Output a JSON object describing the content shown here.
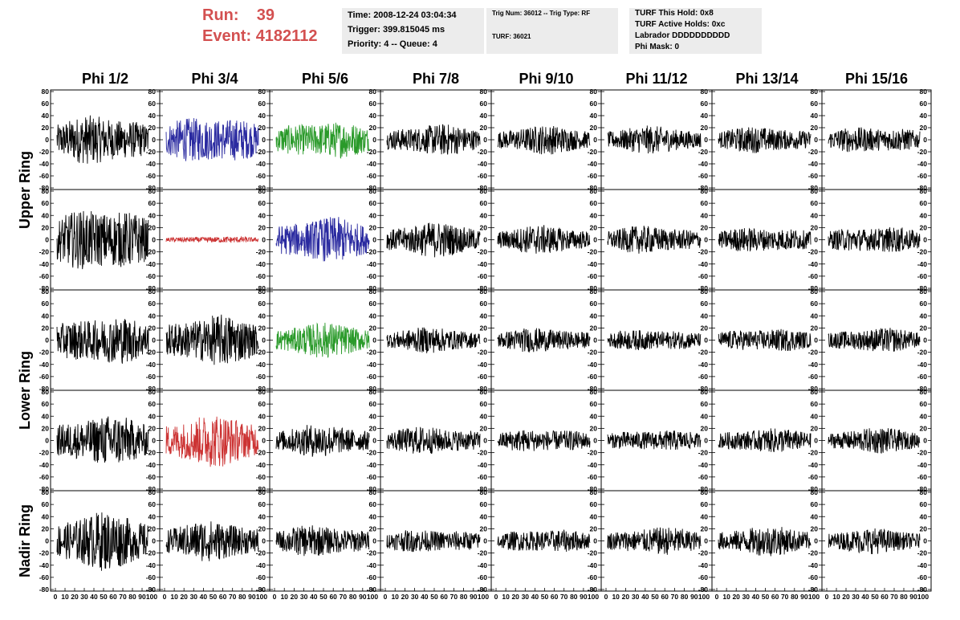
{
  "header": {
    "run_label": "Run:",
    "run_value": "39",
    "event_label": "Event:",
    "event_value": "4182112",
    "time_line": "Time: 2008-12-24 03:04:34",
    "trigger_line": "Trigger: 399.815045 ms",
    "priority_line": "Priority: 4 -- Queue: 4",
    "trig_num_line": "Trig Num: 36012 -- Trig Type: RF",
    "turf_line": "TURF: 36021",
    "turf_hold_line": "TURF This Hold: 0x8",
    "turf_active_line": "TURF Active Holds: 0xc",
    "labrador_line": "Labrador DDDDDDDDDD",
    "phi_mask_line": "Phi Mask: 0"
  },
  "colors": {
    "header_text": "#d35050",
    "info_box": "#ececec",
    "black_trace": "#000000",
    "blue_trace": "#2a2aa0",
    "green_trace": "#2a9a2a",
    "red_trace": "#cc3333"
  },
  "chart_data": {
    "type": "line",
    "column_labels": [
      "Phi 1/2",
      "Phi 3/4",
      "Phi 5/6",
      "Phi 7/8",
      "Phi 9/10",
      "Phi 11/12",
      "Phi 13/14",
      "Phi 15/16"
    ],
    "ring_labels": [
      "Upper Ring",
      "Lower Ring",
      "Nadir Ring"
    ],
    "ylim": [
      -80,
      80
    ],
    "yticks": [
      "80",
      "60",
      "40",
      "20",
      "0",
      "-20",
      "-40",
      "-60",
      "-80"
    ],
    "xlim": [
      0,
      100
    ],
    "xticks": [
      "0",
      "10",
      "20",
      "30",
      "40",
      "50",
      "60",
      "70",
      "80",
      "90",
      "100"
    ],
    "trace_amplitudes": [
      [
        45,
        45,
        35,
        28,
        25,
        24,
        24,
        25
      ],
      [
        60,
        6,
        40,
        30,
        25,
        25,
        24,
        25
      ],
      [
        45,
        45,
        30,
        22,
        22,
        20,
        22,
        22
      ],
      [
        45,
        45,
        28,
        25,
        22,
        20,
        22,
        22
      ],
      [
        50,
        35,
        28,
        22,
        22,
        25,
        26,
        22
      ]
    ],
    "trace_colors": [
      [
        "black",
        "blue",
        "green",
        "black",
        "black",
        "black",
        "black",
        "black"
      ],
      [
        "black",
        "red",
        "blue",
        "black",
        "black",
        "black",
        "black",
        "black"
      ],
      [
        "black",
        "black",
        "green",
        "black",
        "black",
        "black",
        "black",
        "black"
      ],
      [
        "black",
        "red",
        "black",
        "black",
        "black",
        "black",
        "black",
        "black"
      ],
      [
        "black",
        "black",
        "black",
        "black",
        "black",
        "black",
        "black",
        "black"
      ]
    ]
  }
}
